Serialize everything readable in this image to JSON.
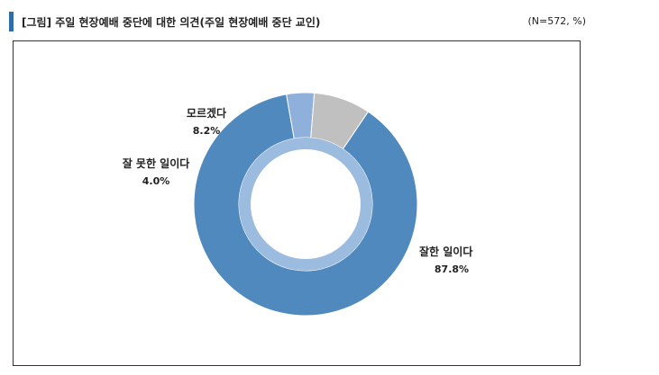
{
  "header": {
    "title": "[그림] 주일 현장예배 중단에 대한 의견(주일 현장예배 중단 교인)",
    "note": "(N=572, %)"
  },
  "colors": {
    "accent": "#2f6ea9",
    "good": "#4f89bd",
    "bad": "#8eb0da",
    "unknown": "#c0c0c0",
    "inner_ring": "#9cbcdf"
  },
  "chart_data": {
    "type": "pie",
    "variant": "donut",
    "title": "[그림] 주일 현장예배 중단에 대한 의견(주일 현장예배 중단 교인)",
    "unit": "%",
    "n": 572,
    "categories": [
      "잘한 일이다",
      "잘 못한 일이다",
      "모르겠다"
    ],
    "values": [
      87.8,
      4.0,
      8.2
    ],
    "value_labels": [
      "87.8%",
      "4.0%",
      "8.2%"
    ],
    "colors": [
      "#4f89bd",
      "#8eb0da",
      "#c0c0c0"
    ],
    "legend": "none"
  }
}
